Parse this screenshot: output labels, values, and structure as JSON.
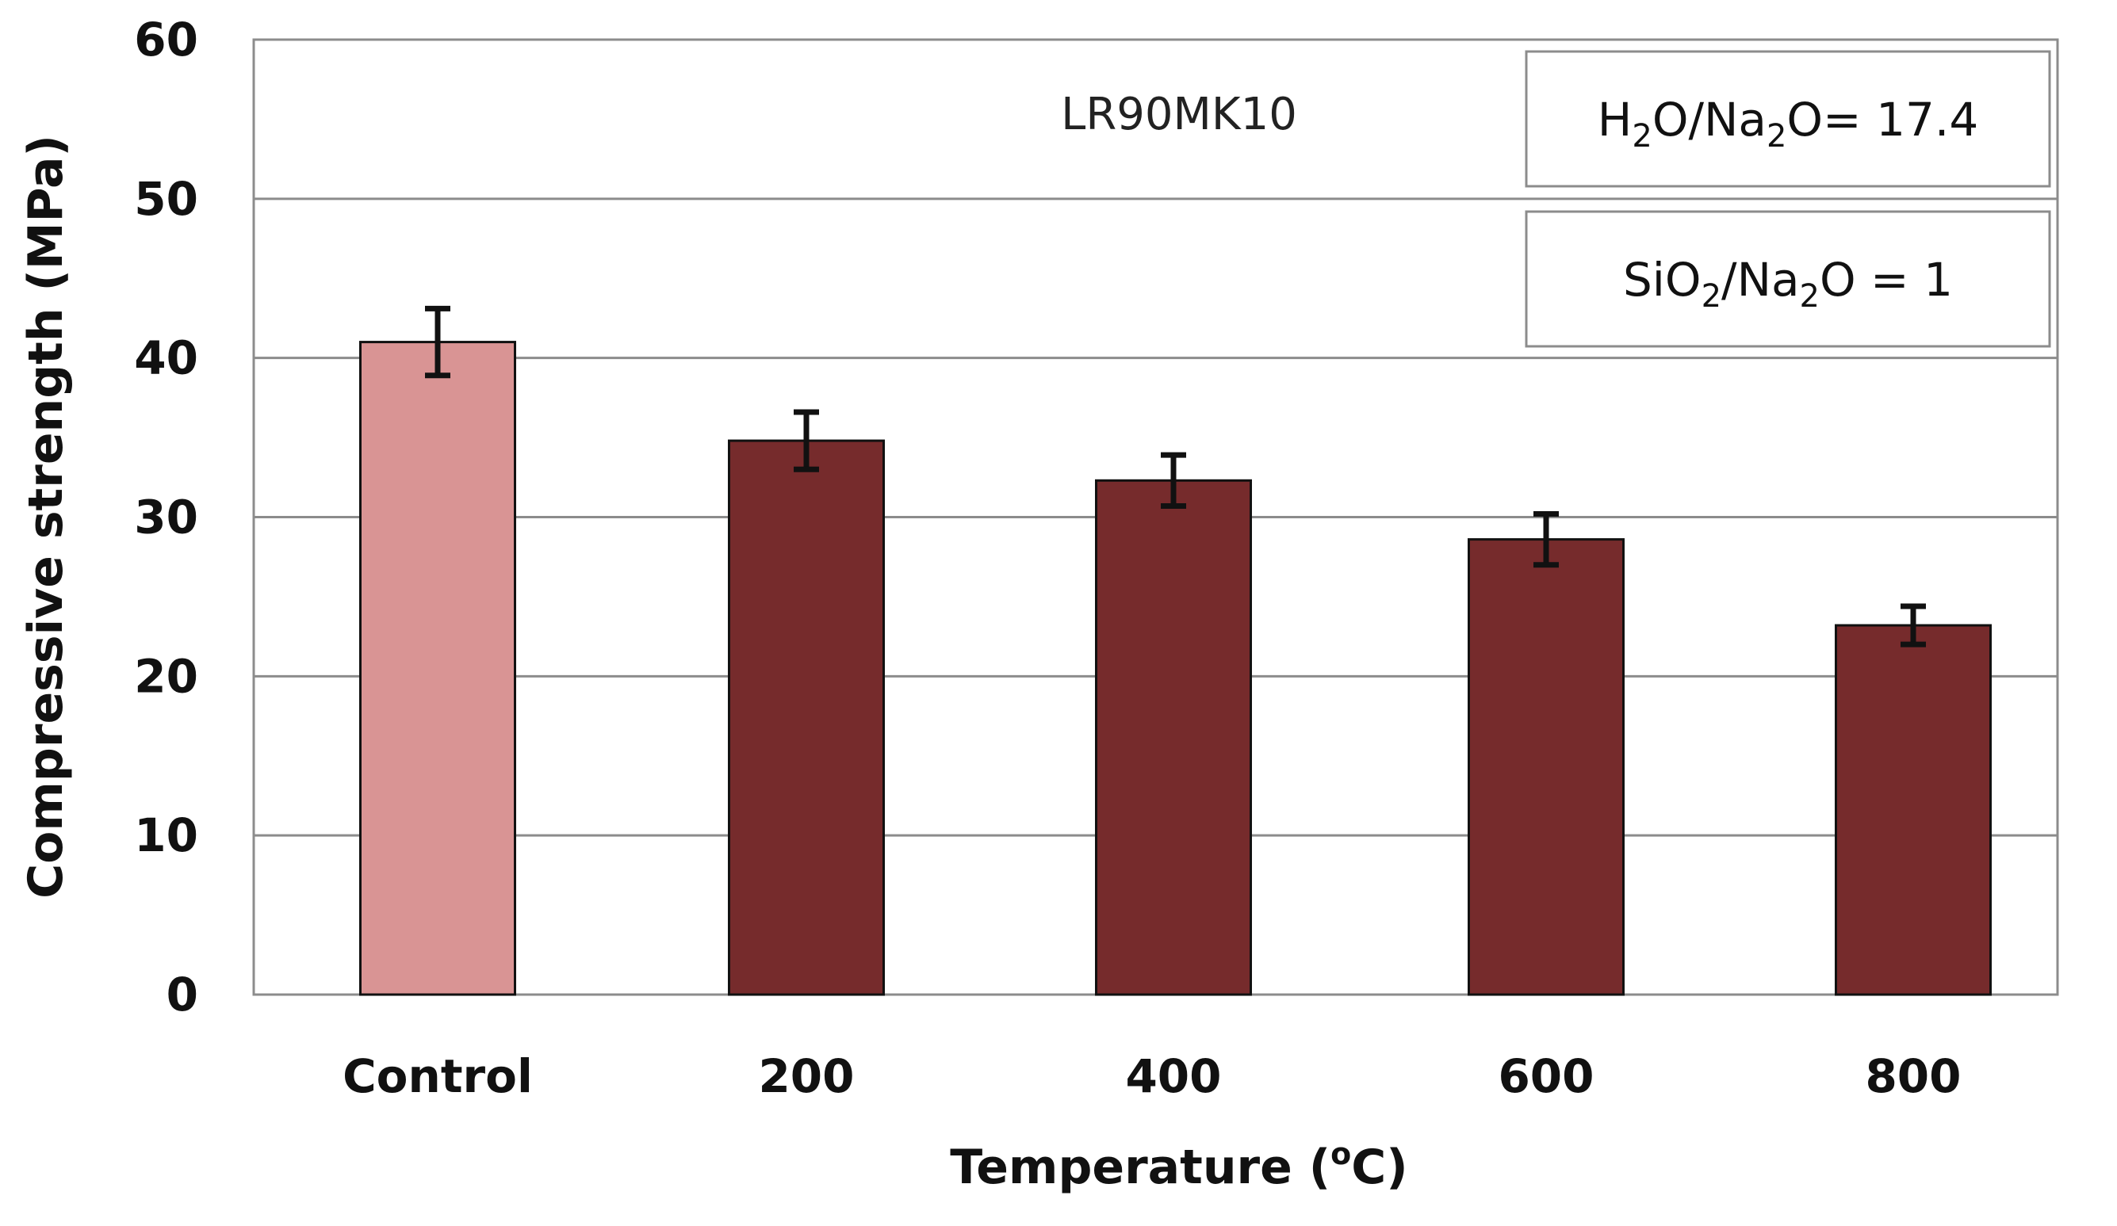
{
  "chart_data": {
    "type": "bar",
    "title": "LR90MK10",
    "xlabel": "Temperature (°C)",
    "xlabel_parts": {
      "prefix": "Temperature (",
      "sup": "o",
      "suffix": "C)"
    },
    "ylabel": "Compressive strength (MPa)",
    "ylim": [
      0,
      60
    ],
    "yticks": [
      0,
      10,
      20,
      30,
      40,
      50,
      60
    ],
    "grid": true,
    "categories": [
      "Control",
      "200",
      "400",
      "600",
      "800"
    ],
    "values": [
      41.0,
      34.8,
      32.3,
      28.6,
      23.2
    ],
    "errors": [
      2.1,
      1.8,
      1.6,
      1.6,
      1.2
    ],
    "bar_colors": [
      "#d99494",
      "#762b2c",
      "#762b2c",
      "#762b2c",
      "#762b2c"
    ],
    "annotations": [
      {
        "text": "H₂O/Na₂O= 17.4",
        "parts": [
          [
            "H",
            ""
          ],
          [
            "2",
            "sub"
          ],
          [
            "O/Na",
            ""
          ],
          [
            "2",
            "sub"
          ],
          [
            "O= 17.4",
            ""
          ]
        ]
      },
      {
        "text": "SiO₂/Na₂O = 1",
        "parts": [
          [
            "SiO",
            ""
          ],
          [
            "2",
            "sub"
          ],
          [
            "/Na",
            ""
          ],
          [
            "2",
            "sub"
          ],
          [
            "O = 1",
            ""
          ]
        ]
      }
    ]
  },
  "colors": {
    "grid": "#8c8c8c",
    "frame": "#8c8c8c",
    "bar_stroke": "#111111",
    "error_bar": "#111111",
    "note_border": "#8c8c8c"
  }
}
